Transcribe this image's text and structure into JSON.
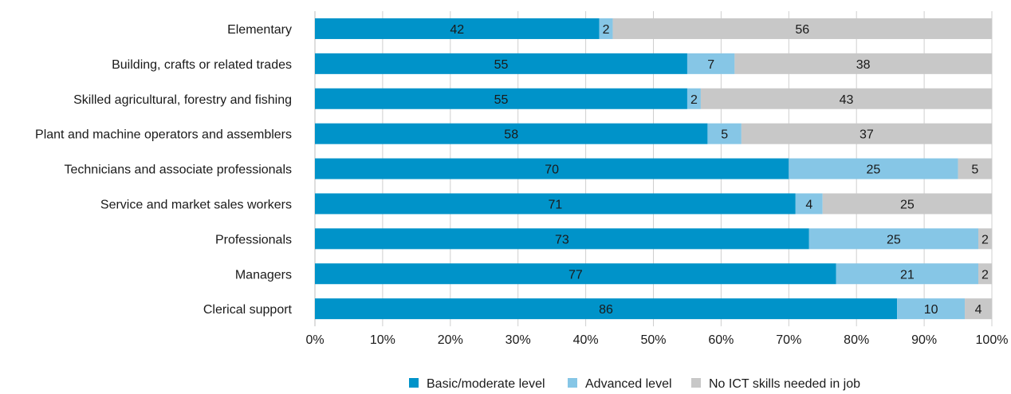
{
  "chart_data": {
    "type": "bar",
    "orientation": "horizontal",
    "stacked": true,
    "categories": [
      "Elementary",
      "Building, crafts or related trades",
      "Skilled agricultural, forestry and fishing",
      "Plant and machine operators and assemblers",
      "Technicians and associate professionals",
      "Service and market sales workers",
      "Professionals",
      "Managers",
      "Clerical support"
    ],
    "series": [
      {
        "name": "Basic/moderate level",
        "color": "#0093c9",
        "values": [
          42,
          55,
          55,
          58,
          70,
          71,
          73,
          77,
          86
        ]
      },
      {
        "name": "Advanced level",
        "color": "#86c6e6",
        "values": [
          2,
          7,
          2,
          5,
          25,
          4,
          25,
          21,
          10
        ]
      },
      {
        "name": "No ICT skills needed in job",
        "color": "#c8c8c8",
        "values": [
          56,
          38,
          43,
          37,
          5,
          25,
          2,
          2,
          4
        ]
      }
    ],
    "xlim": [
      0,
      100
    ],
    "x_ticks": [
      "0%",
      "10%",
      "20%",
      "30%",
      "40%",
      "50%",
      "60%",
      "70%",
      "80%",
      "90%",
      "100%"
    ],
    "grid": true,
    "legend_position": "bottom"
  }
}
